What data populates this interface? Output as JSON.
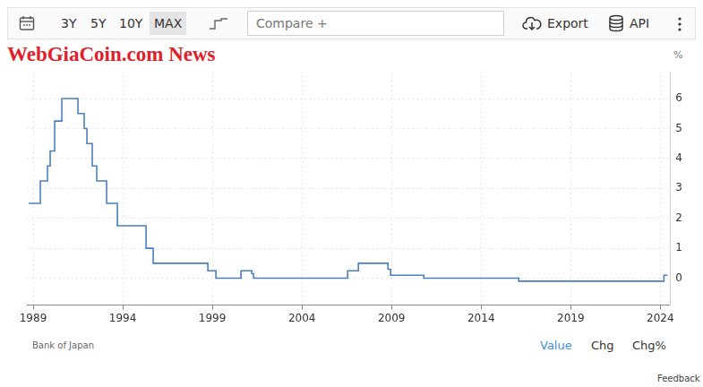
{
  "page": {
    "toolbar": {
      "ranges": [
        "3Y",
        "5Y",
        "10Y",
        "MAX"
      ],
      "selected": "MAX",
      "compare": "Compare +",
      "export": "Export",
      "api": "API"
    },
    "watermark": "WebGiaCoin.com News",
    "source": "Bank of Japan",
    "views": [
      "Value",
      "Chg",
      "Chg%"
    ],
    "selected_view": "Value",
    "feedback": "Feedback"
  },
  "chart_data": {
    "type": "line",
    "y_label": "%",
    "x": [
      1988.75,
      1989.4,
      1989.8,
      1989.95,
      1990.2,
      1990.6,
      1991.5,
      1991.85,
      1992.0,
      1992.3,
      1992.55,
      1993.1,
      1993.7,
      1995.3,
      1995.7,
      1998.75,
      1999.2,
      2000.6,
      2001.2,
      2001.3,
      2006.55,
      2007.15,
      2008.8,
      2008.95,
      2010.8,
      2016.1,
      2024.2,
      2024.4
    ],
    "values": [
      2.5,
      3.25,
      3.75,
      4.25,
      5.25,
      6.0,
      5.5,
      5.0,
      4.5,
      3.75,
      3.25,
      2.5,
      1.75,
      1.0,
      0.5,
      0.25,
      0.0,
      0.25,
      0.15,
      0.0,
      0.25,
      0.5,
      0.3,
      0.1,
      0.0,
      -0.1,
      0.1,
      0.1
    ],
    "color": "#4a7fc1",
    "line_style": "stepped",
    "xlim": [
      1988.65,
      2024.55
    ],
    "ylim": [
      -0.9,
      6.9
    ],
    "xticks": [
      1989,
      1994,
      1999,
      2004,
      2009,
      2014,
      2019,
      2024
    ],
    "yticks": [
      0,
      1,
      2,
      3,
      4,
      5,
      6
    ],
    "grid": true
  }
}
